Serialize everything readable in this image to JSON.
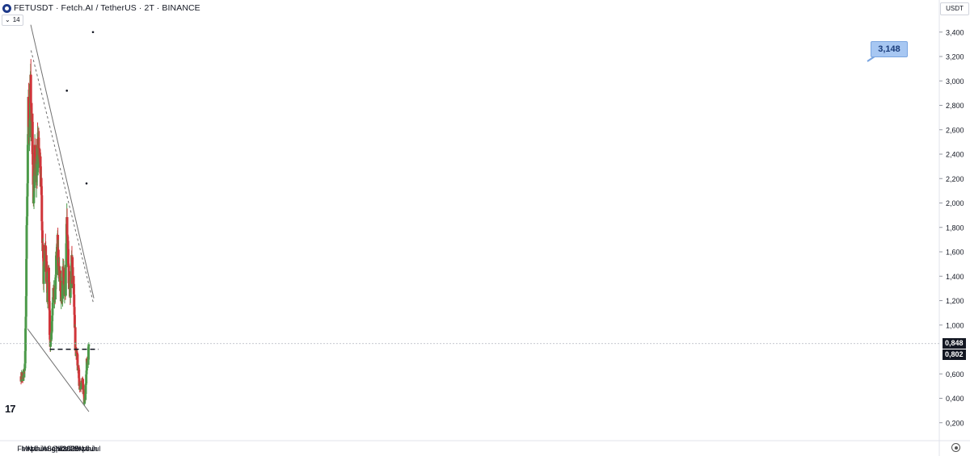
{
  "header": {
    "symbol_line": "FETUSDT · Fetch.AI / TetherUS · 2T · BINANCE",
    "indicator_value": "14",
    "currency": "USDT"
  },
  "price_tags": {
    "last_price": "0,848",
    "level": "0,802"
  },
  "callout_label": "3,148",
  "colors": {
    "up": "#4c9a4a",
    "down": "#d0353a",
    "trendline": "#707070",
    "dashed_level": "#131722"
  },
  "chart_data": {
    "type": "candlestick",
    "title": "",
    "ylim": [
      0.08,
      3.52
    ],
    "y_ticks": [
      {
        "value": 3.4,
        "label": "3,400"
      },
      {
        "value": 3.2,
        "label": "3,200"
      },
      {
        "value": 3.0,
        "label": "3,000"
      },
      {
        "value": 2.8,
        "label": "2,800"
      },
      {
        "value": 2.6,
        "label": "2,600"
      },
      {
        "value": 2.4,
        "label": "2,400"
      },
      {
        "value": 2.2,
        "label": "2,200"
      },
      {
        "value": 2.0,
        "label": "2,000"
      },
      {
        "value": 1.8,
        "label": "1,800"
      },
      {
        "value": 1.6,
        "label": "1,600"
      },
      {
        "value": 1.4,
        "label": "1,400"
      },
      {
        "value": 1.2,
        "label": "1,200"
      },
      {
        "value": 1.0,
        "label": "1,000"
      },
      {
        "value": 0.6,
        "label": "0,600"
      },
      {
        "value": 0.4,
        "label": "0,400"
      },
      {
        "value": 0.2,
        "label": "0,200"
      }
    ],
    "x_ticks": [
      {
        "date": "2024-02-01",
        "label": "Feb"
      },
      {
        "date": "2024-03-01",
        "label": "Mrz"
      },
      {
        "date": "2024-04-01",
        "label": "Apr"
      },
      {
        "date": "2024-05-01",
        "label": "Mai"
      },
      {
        "date": "2024-06-01",
        "label": "Jun"
      },
      {
        "date": "2024-07-01",
        "label": "Jul"
      },
      {
        "date": "2024-08-01",
        "label": "Aug"
      },
      {
        "date": "2024-09-01",
        "label": "Sep"
      },
      {
        "date": "2024-10-01",
        "label": "Okt"
      },
      {
        "date": "2024-11-01",
        "label": "Nov"
      },
      {
        "date": "2024-12-01",
        "label": "Dez"
      },
      {
        "date": "2025-01-01",
        "label": "2025"
      },
      {
        "date": "2025-02-01",
        "label": "Feb"
      },
      {
        "date": "2025-03-01",
        "label": "Mrz"
      },
      {
        "date": "2025-04-01",
        "label": "Apr"
      },
      {
        "date": "2025-05-01",
        "label": "Mai"
      },
      {
        "date": "2025-06-01",
        "label": "Jun"
      },
      {
        "date": "2025-07-01",
        "label": "Jul"
      }
    ],
    "price_path": [
      [
        "2024-01-13",
        0.58
      ],
      [
        "2024-01-25",
        0.57
      ],
      [
        "2024-02-07",
        0.6
      ],
      [
        "2024-02-12",
        0.7
      ],
      [
        "2024-02-17",
        1.05
      ],
      [
        "2024-02-21",
        1.4
      ],
      [
        "2024-02-25",
        1.8
      ],
      [
        "2024-02-28",
        2.15
      ],
      [
        "2024-03-04",
        2.5
      ],
      [
        "2024-03-08",
        2.75
      ],
      [
        "2024-03-12",
        2.6
      ],
      [
        "2024-03-15",
        2.45
      ],
      [
        "2024-03-19",
        2.75
      ],
      [
        "2024-03-23",
        3.25
      ],
      [
        "2024-03-27",
        2.8
      ],
      [
        "2024-03-31",
        2.6
      ],
      [
        "2024-04-04",
        2.55
      ],
      [
        "2024-04-08",
        2.35
      ],
      [
        "2024-04-12",
        2.05
      ],
      [
        "2024-04-17",
        2.2
      ],
      [
        "2024-04-22",
        2.4
      ],
      [
        "2024-04-27",
        2.3
      ],
      [
        "2024-05-03",
        2.2
      ],
      [
        "2024-05-09",
        2.35
      ],
      [
        "2024-05-16",
        2.45
      ],
      [
        "2024-05-22",
        2.55
      ],
      [
        "2024-05-27",
        2.35
      ],
      [
        "2024-06-02",
        2.25
      ],
      [
        "2024-06-07",
        2.1
      ],
      [
        "2024-06-12",
        1.8
      ],
      [
        "2024-06-18",
        1.6
      ],
      [
        "2024-06-24",
        1.4
      ],
      [
        "2024-06-30",
        1.45
      ],
      [
        "2024-07-04",
        1.65
      ],
      [
        "2024-07-10",
        1.5
      ],
      [
        "2024-07-16",
        1.35
      ],
      [
        "2024-07-22",
        1.25
      ],
      [
        "2024-07-28",
        1.45
      ],
      [
        "2024-08-03",
        1.2
      ],
      [
        "2024-08-07",
        0.82
      ],
      [
        "2024-08-13",
        0.88
      ],
      [
        "2024-08-20",
        0.92
      ],
      [
        "2024-08-26",
        1.1
      ],
      [
        "2024-09-02",
        1.3
      ],
      [
        "2024-09-08",
        1.2
      ],
      [
        "2024-09-13",
        1.3
      ],
      [
        "2024-09-19",
        1.45
      ],
      [
        "2024-09-24",
        1.65
      ],
      [
        "2024-09-29",
        1.7
      ],
      [
        "2024-10-05",
        1.55
      ],
      [
        "2024-10-11",
        1.4
      ],
      [
        "2024-10-17",
        1.45
      ],
      [
        "2024-10-23",
        1.3
      ],
      [
        "2024-10-29",
        1.25
      ],
      [
        "2024-11-04",
        1.3
      ],
      [
        "2024-11-10",
        1.45
      ],
      [
        "2024-11-15",
        1.35
      ],
      [
        "2024-11-20",
        1.25
      ],
      [
        "2024-11-26",
        1.3
      ],
      [
        "2024-12-01",
        1.6
      ],
      [
        "2024-12-05",
        2.0
      ],
      [
        "2024-12-09",
        1.75
      ],
      [
        "2024-12-14",
        1.6
      ],
      [
        "2024-12-19",
        1.4
      ],
      [
        "2024-12-25",
        1.35
      ],
      [
        "2024-12-31",
        1.3
      ],
      [
        "2025-01-05",
        1.4
      ],
      [
        "2025-01-10",
        1.55
      ],
      [
        "2025-01-15",
        1.4
      ],
      [
        "2025-01-20",
        1.35
      ],
      [
        "2025-01-26",
        1.25
      ],
      [
        "2025-02-01",
        1.0
      ],
      [
        "2025-02-05",
        0.78
      ],
      [
        "2025-02-11",
        0.78
      ],
      [
        "2025-02-18",
        0.72
      ],
      [
        "2025-02-24",
        0.65
      ],
      [
        "2025-03-02",
        0.58
      ],
      [
        "2025-03-08",
        0.45
      ],
      [
        "2025-03-14",
        0.48
      ],
      [
        "2025-03-20",
        0.52
      ],
      [
        "2025-03-26",
        0.55
      ],
      [
        "2025-04-01",
        0.48
      ],
      [
        "2025-04-06",
        0.42
      ],
      [
        "2025-04-10",
        0.36
      ],
      [
        "2025-04-15",
        0.4
      ],
      [
        "2025-04-21",
        0.55
      ],
      [
        "2025-04-26",
        0.7
      ],
      [
        "2025-05-02",
        0.68
      ],
      [
        "2025-05-06",
        0.7
      ],
      [
        "2025-05-09",
        0.85
      ],
      [
        "2025-05-12",
        0.85
      ]
    ],
    "trendlines": [
      {
        "name": "upper",
        "style": "solid",
        "points": [
          [
            "2024-03-24",
            3.46
          ],
          [
            "2025-06-16",
            1.22
          ]
        ]
      },
      {
        "name": "upper-inner",
        "style": "dotted",
        "points": [
          [
            "2024-03-26",
            3.25
          ],
          [
            "2025-06-13",
            1.18
          ]
        ]
      },
      {
        "name": "lower",
        "style": "solid",
        "points": [
          [
            "2024-03-01",
            0.97
          ],
          [
            "2025-05-12",
            0.29
          ]
        ]
      },
      {
        "name": "support",
        "style": "dashed",
        "points": [
          [
            "2024-08-06",
            0.802
          ],
          [
            "2025-07-20",
            0.802
          ]
        ]
      }
    ],
    "last_price": 0.848,
    "markers": [
      {
        "date": "2025-06-10",
        "value": 3.4
      },
      {
        "date": "2024-12-06",
        "value": 2.92
      },
      {
        "date": "2025-04-25",
        "value": 2.16
      }
    ]
  }
}
